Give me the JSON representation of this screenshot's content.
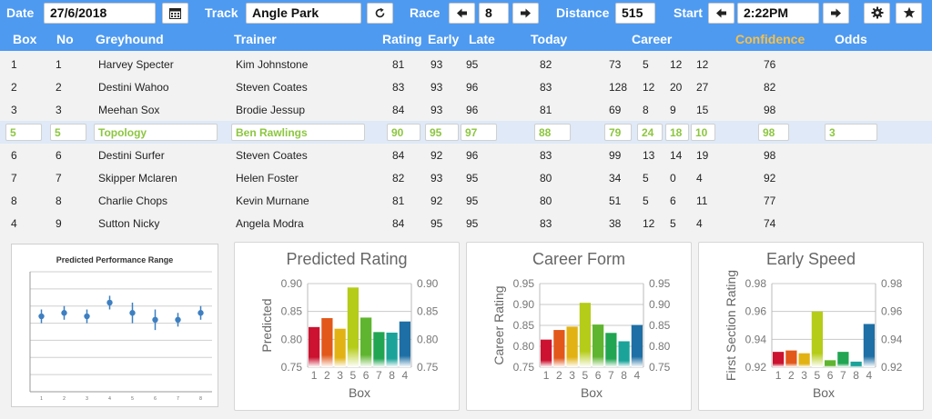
{
  "toolbar": {
    "date_label": "Date",
    "date_value": "27/6/2018",
    "track_label": "Track",
    "track_value": "Angle Park",
    "race_label": "Race",
    "race_value": "8",
    "distance_label": "Distance",
    "distance_value": "515",
    "start_label": "Start",
    "start_value": "2:22PM"
  },
  "columns": {
    "box": "Box",
    "no": "No",
    "greyhound": "Greyhound",
    "trainer": "Trainer",
    "rating": "Rating",
    "early": "Early",
    "late": "Late",
    "today": "Today",
    "career": "Career",
    "confidence": "Confidence",
    "odds": "Odds"
  },
  "rows": [
    {
      "box": "1",
      "no": "1",
      "dog": "Harvey Specter",
      "trainer": "Kim Johnstone",
      "rating": "81",
      "early": "93",
      "late": "95",
      "today": "82",
      "c1": "73",
      "c2": "5",
      "c3": "12",
      "c4": "12",
      "conf": "76",
      "odds": ""
    },
    {
      "box": "2",
      "no": "2",
      "dog": "Destini Wahoo",
      "trainer": "Steven Coates",
      "rating": "83",
      "early": "93",
      "late": "96",
      "today": "83",
      "c1": "128",
      "c2": "12",
      "c3": "20",
      "c4": "27",
      "conf": "82",
      "odds": ""
    },
    {
      "box": "3",
      "no": "3",
      "dog": "Meehan Sox",
      "trainer": "Brodie Jessup",
      "rating": "84",
      "early": "93",
      "late": "96",
      "today": "81",
      "c1": "69",
      "c2": "8",
      "c3": "9",
      "c4": "15",
      "conf": "98",
      "odds": ""
    },
    {
      "box": "5",
      "no": "5",
      "dog": "Topology",
      "trainer": "Ben Rawlings",
      "rating": "90",
      "early": "95",
      "late": "97",
      "today": "88",
      "c1": "79",
      "c2": "24",
      "c3": "18",
      "c4": "10",
      "conf": "98",
      "odds": "3"
    },
    {
      "box": "6",
      "no": "6",
      "dog": "Destini Surfer",
      "trainer": "Steven Coates",
      "rating": "84",
      "early": "92",
      "late": "96",
      "today": "83",
      "c1": "99",
      "c2": "13",
      "c3": "14",
      "c4": "19",
      "conf": "98",
      "odds": ""
    },
    {
      "box": "7",
      "no": "7",
      "dog": "Skipper Mclaren",
      "trainer": "Helen Foster",
      "rating": "82",
      "early": "93",
      "late": "95",
      "today": "80",
      "c1": "34",
      "c2": "5",
      "c3": "0",
      "c4": "4",
      "conf": "92",
      "odds": ""
    },
    {
      "box": "8",
      "no": "8",
      "dog": "Charlie Chops",
      "trainer": "Kevin Murnane",
      "rating": "81",
      "early": "92",
      "late": "95",
      "today": "80",
      "c1": "51",
      "c2": "5",
      "c3": "6",
      "c4": "11",
      "conf": "77",
      "odds": ""
    },
    {
      "box": "4",
      "no": "9",
      "dog": "Sutton Nicky",
      "trainer": "Angela Modra",
      "rating": "84",
      "early": "95",
      "late": "95",
      "today": "83",
      "c1": "38",
      "c2": "12",
      "c3": "5",
      "c4": "4",
      "conf": "74",
      "odds": ""
    }
  ],
  "selected_row": 3,
  "chart_data": [
    {
      "type": "scatter",
      "title": "Predicted Performance Range",
      "categories": [
        "1",
        "2",
        "3",
        "4",
        "5",
        "6",
        "7",
        "8"
      ],
      "values": [
        0.82,
        0.83,
        0.82,
        0.86,
        0.83,
        0.81,
        0.81,
        0.83
      ],
      "low": [
        0.8,
        0.81,
        0.8,
        0.84,
        0.8,
        0.78,
        0.79,
        0.81
      ],
      "high": [
        0.84,
        0.85,
        0.84,
        0.88,
        0.86,
        0.84,
        0.83,
        0.85
      ],
      "ylim": [
        0.6,
        0.95
      ],
      "grid": true
    },
    {
      "type": "bar",
      "title": "Predicted Rating",
      "xlabel": "Box",
      "ylabel": "Predicted",
      "categories": [
        "1",
        "2",
        "3",
        "5",
        "6",
        "7",
        "8",
        "4"
      ],
      "values": [
        0.822,
        0.838,
        0.819,
        0.893,
        0.839,
        0.813,
        0.812,
        0.832
      ],
      "ylim": [
        0.75,
        0.9
      ],
      "yticks": [
        "0.90",
        "0.85",
        "0.80",
        "0.75"
      ]
    },
    {
      "type": "bar",
      "title": "Career Form",
      "xlabel": "Box",
      "ylabel": "Career Rating",
      "categories": [
        "1",
        "2",
        "3",
        "5",
        "6",
        "7",
        "8",
        "4"
      ],
      "values": [
        0.816,
        0.839,
        0.847,
        0.904,
        0.852,
        0.832,
        0.812,
        0.851
      ],
      "ylim": [
        0.75,
        0.95
      ],
      "yticks": [
        "0.95",
        "0.90",
        "0.85",
        "0.80",
        "0.75"
      ]
    },
    {
      "type": "bar",
      "title": "Early Speed",
      "xlabel": "Box",
      "ylabel": "First Section Rating",
      "categories": [
        "1",
        "2",
        "3",
        "5",
        "6",
        "7",
        "8",
        "4"
      ],
      "values": [
        0.931,
        0.932,
        0.93,
        0.96,
        0.925,
        0.931,
        0.924,
        0.951
      ],
      "ylim": [
        0.92,
        0.98
      ],
      "yticks": [
        "0.98",
        "0.96",
        "0.94",
        "0.92"
      ]
    }
  ],
  "bar_colors": [
    "#cc1230",
    "#e2571a",
    "#e2b214",
    "#b5cc18",
    "#5fb52f",
    "#21a552",
    "#1ba39a",
    "#1e6fa5"
  ],
  "icons": {
    "calendar": "calendar-icon",
    "refresh": "refresh-icon",
    "prev": "arrow-left-icon",
    "next": "arrow-right-icon",
    "settings": "gear-icon",
    "favorite": "star-icon"
  }
}
